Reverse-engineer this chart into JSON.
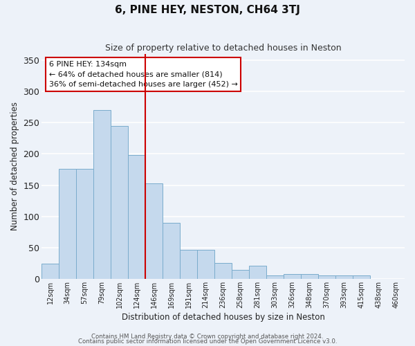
{
  "title": "6, PINE HEY, NESTON, CH64 3TJ",
  "subtitle": "Size of property relative to detached houses in Neston",
  "xlabel": "Distribution of detached houses by size in Neston",
  "ylabel": "Number of detached properties",
  "bin_labels": [
    "12sqm",
    "34sqm",
    "57sqm",
    "79sqm",
    "102sqm",
    "124sqm",
    "146sqm",
    "169sqm",
    "191sqm",
    "214sqm",
    "236sqm",
    "258sqm",
    "281sqm",
    "303sqm",
    "326sqm",
    "348sqm",
    "370sqm",
    "393sqm",
    "415sqm",
    "438sqm",
    "460sqm"
  ],
  "bar_values": [
    24,
    176,
    176,
    270,
    245,
    198,
    153,
    90,
    46,
    46,
    25,
    14,
    21,
    5,
    8,
    8,
    5,
    5,
    5,
    0,
    0
  ],
  "bar_color": "#c5d9ed",
  "bar_edge_color": "#7aaccc",
  "vline_x": 5.5,
  "vline_color": "#cc0000",
  "annotation_title": "6 PINE HEY: 134sqm",
  "annotation_line1": "← 64% of detached houses are smaller (814)",
  "annotation_line2": "36% of semi-detached houses are larger (452) →",
  "annotation_box_facecolor": "#ffffff",
  "annotation_box_edgecolor": "#cc0000",
  "ylim": [
    0,
    360
  ],
  "yticks": [
    0,
    50,
    100,
    150,
    200,
    250,
    300,
    350
  ],
  "footer1": "Contains HM Land Registry data © Crown copyright and database right 2024.",
  "footer2": "Contains public sector information licensed under the Open Government Licence v3.0.",
  "bg_color": "#edf2f9",
  "grid_color": "#ffffff"
}
